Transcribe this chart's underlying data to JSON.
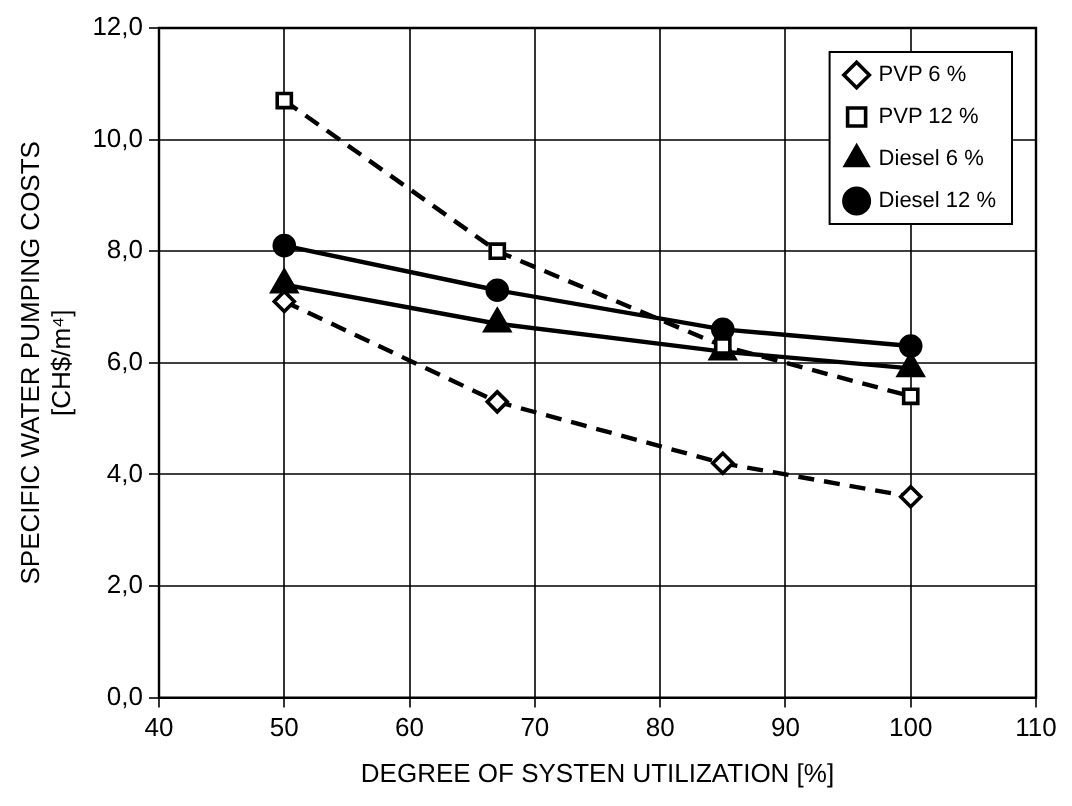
{
  "chart_data": {
    "type": "line",
    "xlabel": "DEGREE OF SYSTEN UTILIZATION [%]",
    "ylabel": "SPECIFIC WATER PUMPING COSTS\n[CH$/m⁴]",
    "x": [
      50,
      67,
      85,
      100
    ],
    "series": [
      {
        "name": "PVP 6 %",
        "color": "#000000",
        "values": [
          7.1,
          5.3,
          4.2,
          3.6
        ],
        "marker": "diamond",
        "line_style": "dashed"
      },
      {
        "name": "PVP 12 %",
        "color": "#000000",
        "values": [
          10.7,
          8.0,
          6.3,
          5.4
        ],
        "marker": "square",
        "line_style": "dashed"
      },
      {
        "name": "Diesel 6 %",
        "color": "#000000",
        "values": [
          7.4,
          6.7,
          6.2,
          5.9
        ],
        "marker": "triangle",
        "line_style": "solid"
      },
      {
        "name": "Diesel 12 %",
        "color": "#000000",
        "values": [
          8.1,
          7.3,
          6.6,
          6.3
        ],
        "marker": "circle",
        "line_style": "solid"
      }
    ],
    "xlim": [
      40,
      110
    ],
    "xticks": [
      40,
      50,
      60,
      70,
      80,
      90,
      100,
      110
    ],
    "ylim": [
      0,
      12
    ],
    "yticks": [
      {
        "value": 0,
        "label": "0,0"
      },
      {
        "value": 2,
        "label": "2,0"
      },
      {
        "value": 4,
        "label": "4,0"
      },
      {
        "value": 6,
        "label": "6,0"
      },
      {
        "value": 8,
        "label": "8,0"
      },
      {
        "value": 10,
        "label": "10,0"
      },
      {
        "value": 12,
        "label": "12,0"
      }
    ],
    "grid": true,
    "legend": "top right"
  }
}
